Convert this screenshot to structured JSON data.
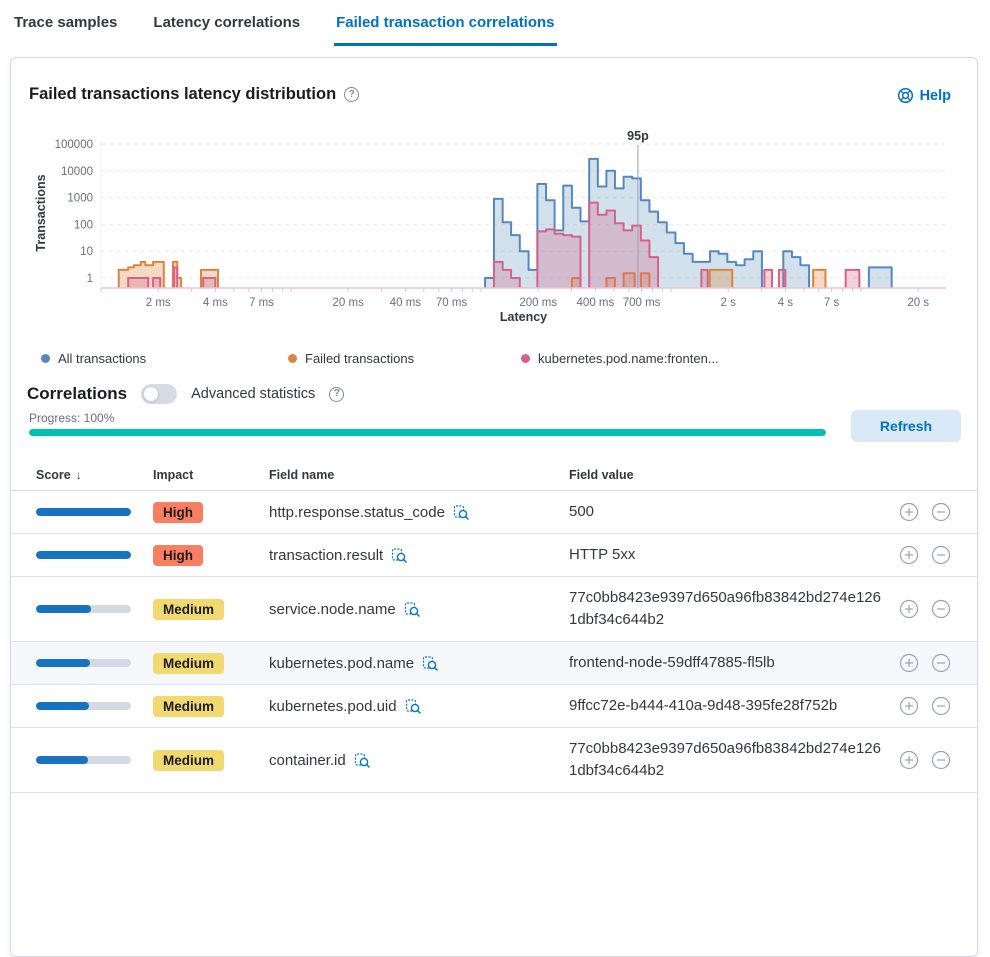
{
  "tabs": [
    {
      "label": "Trace samples",
      "active": false
    },
    {
      "label": "Latency correlations",
      "active": false
    },
    {
      "label": "Failed transaction correlations",
      "active": true
    }
  ],
  "panel": {
    "title": "Failed transactions latency distribution",
    "help_label": "Help"
  },
  "icons": {
    "question": "?",
    "sort_desc": "↓"
  },
  "chart_data": {
    "type": "histogram",
    "xlabel": "Latency",
    "ylabel": "Transactions",
    "x_scale": "log",
    "y_scale": "log",
    "x_range_ms": [
      1,
      30000
    ],
    "y_range": [
      1,
      100000
    ],
    "xticks": [
      {
        "ms": 2,
        "label": "2 ms"
      },
      {
        "ms": 4,
        "label": "4 ms"
      },
      {
        "ms": 7,
        "label": "7 ms"
      },
      {
        "ms": 20,
        "label": "20 ms"
      },
      {
        "ms": 40,
        "label": "40 ms"
      },
      {
        "ms": 70,
        "label": "70 ms"
      },
      {
        "ms": 200,
        "label": "200 ms"
      },
      {
        "ms": 400,
        "label": "400 ms"
      },
      {
        "ms": 700,
        "label": "700 ms"
      },
      {
        "ms": 2000,
        "label": "2 s"
      },
      {
        "ms": 4000,
        "label": "4 s"
      },
      {
        "ms": 7000,
        "label": "7 s"
      },
      {
        "ms": 20000,
        "label": "20 s"
      }
    ],
    "yticks": [
      1,
      10,
      100,
      1000,
      10000,
      100000
    ],
    "percentile_marker": {
      "label": "95p",
      "ms": 670
    },
    "series": [
      {
        "name": "All transactions",
        "color": "#5688C0",
        "fill": "rgba(96,146,192,0.28)",
        "bars": [
          [
            105,
            117,
            1
          ],
          [
            117,
            130,
            900
          ],
          [
            130,
            144,
            120
          ],
          [
            144,
            160,
            40
          ],
          [
            160,
            178,
            10
          ],
          [
            178,
            198,
            2
          ],
          [
            198,
            220,
            3200
          ],
          [
            220,
            244,
            800
          ],
          [
            244,
            271,
            60
          ],
          [
            271,
            301,
            2800
          ],
          [
            301,
            334,
            420
          ],
          [
            334,
            371,
            130
          ],
          [
            371,
            412,
            28000
          ],
          [
            412,
            457,
            2600
          ],
          [
            457,
            507,
            10000
          ],
          [
            507,
            563,
            2200
          ],
          [
            563,
            625,
            6000
          ],
          [
            625,
            694,
            5200
          ],
          [
            694,
            770,
            800
          ],
          [
            770,
            855,
            300
          ],
          [
            855,
            950,
            120
          ],
          [
            950,
            1055,
            50
          ],
          [
            1055,
            1170,
            20
          ],
          [
            1170,
            1300,
            8
          ],
          [
            1300,
            1445,
            4
          ],
          [
            1445,
            1605,
            4
          ],
          [
            1605,
            1780,
            10
          ],
          [
            1780,
            1980,
            8
          ],
          [
            1980,
            2200,
            4
          ],
          [
            2200,
            2440,
            3
          ],
          [
            2440,
            2710,
            5
          ],
          [
            2710,
            3010,
            10
          ],
          [
            3900,
            4330,
            10
          ],
          [
            4330,
            4800,
            6
          ],
          [
            4800,
            5330,
            3
          ],
          [
            11000,
            14500,
            2.5
          ]
        ]
      },
      {
        "name": "Failed transactions",
        "color": "#D9863D",
        "fill": "rgba(217,134,61,0.30)",
        "bars": [
          [
            1.24,
            1.39,
            2
          ],
          [
            1.39,
            1.49,
            2.5
          ],
          [
            1.49,
            1.62,
            3
          ],
          [
            1.62,
            1.71,
            4
          ],
          [
            1.71,
            1.88,
            3
          ],
          [
            1.88,
            2.14,
            4
          ],
          [
            2.39,
            2.52,
            4
          ],
          [
            2.52,
            2.64,
            1
          ],
          [
            3.36,
            4.13,
            2
          ],
          [
            301,
            334,
            1
          ],
          [
            457,
            507,
            1
          ],
          [
            563,
            644,
            1.5
          ],
          [
            694,
            770,
            1.5
          ],
          [
            1600,
            2100,
            2
          ],
          [
            5600,
            6500,
            2
          ]
        ]
      },
      {
        "name": "kubernetes.pod.name:fronten...",
        "color": "#D4628B",
        "fill": "rgba(212,98,139,0.30)",
        "bars": [
          [
            1.39,
            1.77,
            1
          ],
          [
            1.88,
            2.05,
            1
          ],
          [
            2.42,
            2.52,
            2.5
          ],
          [
            3.45,
            4.0,
            1
          ],
          [
            117,
            130,
            4
          ],
          [
            130,
            144,
            2
          ],
          [
            144,
            160,
            1
          ],
          [
            198,
            220,
            55
          ],
          [
            220,
            244,
            65
          ],
          [
            244,
            271,
            45
          ],
          [
            271,
            301,
            40
          ],
          [
            301,
            334,
            35
          ],
          [
            371,
            412,
            650
          ],
          [
            412,
            457,
            230
          ],
          [
            457,
            507,
            330
          ],
          [
            507,
            563,
            110
          ],
          [
            563,
            625,
            60
          ],
          [
            625,
            694,
            90
          ],
          [
            694,
            770,
            25
          ],
          [
            770,
            855,
            6
          ],
          [
            1445,
            1560,
            2
          ],
          [
            3100,
            3400,
            2
          ],
          [
            3700,
            4000,
            2
          ],
          [
            8300,
            9800,
            2
          ]
        ]
      }
    ]
  },
  "correlations": {
    "heading": "Correlations",
    "toggle_label": "Advanced statistics",
    "toggle_on": false,
    "progress_label": "Progress: 100%",
    "progress_percent": 100,
    "progress_color": "#00BFB3",
    "refresh_label": "Refresh"
  },
  "table": {
    "headers": {
      "score": "Score",
      "impact": "Impact",
      "field_name": "Field name",
      "field_value": "Field value"
    },
    "score_color": "#1673C1",
    "impact_styles": {
      "High": {
        "bg": "#FA7E62",
        "text": "#1a1c21"
      },
      "Medium": {
        "bg": "#F1D86F",
        "text": "#1a1c21"
      }
    },
    "rows": [
      {
        "score_pct": 100,
        "impact": "High",
        "field_name": "http.response.status_code",
        "field_value": "500",
        "highlighted": false
      },
      {
        "score_pct": 100,
        "impact": "High",
        "field_name": "transaction.result",
        "field_value": "HTTP 5xx",
        "highlighted": false
      },
      {
        "score_pct": 58,
        "impact": "Medium",
        "field_name": "service.node.name",
        "field_value": "77c0bb8423e9397d650a96fb83842bd274e1261dbf34c644b2",
        "highlighted": false
      },
      {
        "score_pct": 57,
        "impact": "Medium",
        "field_name": "kubernetes.pod.name",
        "field_value": "frontend-node-59dff47885-fl5lb",
        "highlighted": true
      },
      {
        "score_pct": 56,
        "impact": "Medium",
        "field_name": "kubernetes.pod.uid",
        "field_value": "9ffcc72e-b444-410a-9d48-395fe28f752b",
        "highlighted": false
      },
      {
        "score_pct": 55,
        "impact": "Medium",
        "field_name": "container.id",
        "field_value": "77c0bb8423e9397d650a96fb83842bd274e1261dbf34c644b2",
        "highlighted": false
      }
    ]
  }
}
